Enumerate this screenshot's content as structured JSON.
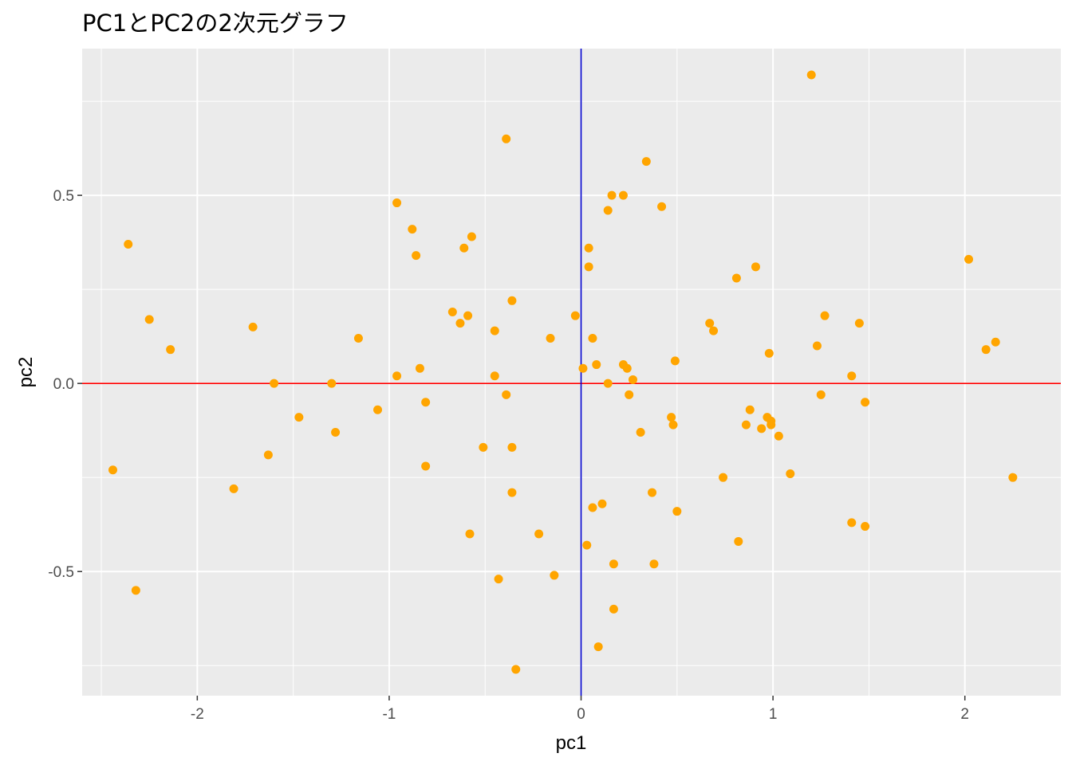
{
  "chart_data": {
    "type": "scatter",
    "title": "PC1とPC2の2次元グラフ",
    "xlabel": "pc1",
    "ylabel": "pc2",
    "xlim": [
      -2.6,
      2.5
    ],
    "ylim": [
      -0.83,
      0.89
    ],
    "x_ticks": [
      -2,
      -1,
      0,
      1,
      2
    ],
    "x_tick_labels": [
      "-2",
      "-1",
      "0",
      "1",
      "2"
    ],
    "y_ticks": [
      -0.5,
      0.0,
      0.5
    ],
    "y_tick_labels": [
      "-0.5",
      "0.0",
      "0.5"
    ],
    "x_minor_ticks": [
      -2.5,
      -1.5,
      -0.5,
      0.5,
      1.5
    ],
    "y_minor_ticks": [
      -0.75,
      -0.25,
      0.25,
      0.75
    ],
    "grid": true,
    "background_color": "#ebebeb",
    "grid_color": "#ffffff",
    "point_color": "#ffa500",
    "hline": {
      "y": 0,
      "color": "#ff0000"
    },
    "vline": {
      "x": 0,
      "color": "#0000cd"
    },
    "points": [
      [
        -2.44,
        -0.23
      ],
      [
        -2.36,
        0.37
      ],
      [
        -2.32,
        -0.55
      ],
      [
        -2.25,
        0.17
      ],
      [
        -2.14,
        0.09
      ],
      [
        -1.81,
        -0.28
      ],
      [
        -1.71,
        0.15
      ],
      [
        -1.63,
        -0.19
      ],
      [
        -1.6,
        0.0
      ],
      [
        -1.47,
        -0.09
      ],
      [
        -1.3,
        0.0
      ],
      [
        -1.28,
        -0.13
      ],
      [
        -1.16,
        0.12
      ],
      [
        -1.06,
        -0.07
      ],
      [
        -0.96,
        0.48
      ],
      [
        -0.96,
        0.02
      ],
      [
        -0.88,
        0.41
      ],
      [
        -0.86,
        0.34
      ],
      [
        -0.84,
        0.04
      ],
      [
        -0.81,
        -0.05
      ],
      [
        -0.81,
        -0.22
      ],
      [
        -0.67,
        0.19
      ],
      [
        -0.63,
        0.16
      ],
      [
        -0.61,
        0.36
      ],
      [
        -0.59,
        0.18
      ],
      [
        -0.58,
        -0.4
      ],
      [
        -0.57,
        0.39
      ],
      [
        -0.51,
        -0.17
      ],
      [
        -0.45,
        0.02
      ],
      [
        -0.45,
        0.14
      ],
      [
        -0.43,
        -0.52
      ],
      [
        -0.39,
        0.65
      ],
      [
        -0.39,
        -0.03
      ],
      [
        -0.36,
        0.22
      ],
      [
        -0.36,
        -0.17
      ],
      [
        -0.36,
        -0.29
      ],
      [
        -0.34,
        -0.76
      ],
      [
        -0.22,
        -0.4
      ],
      [
        -0.16,
        0.12
      ],
      [
        -0.14,
        -0.51
      ],
      [
        -0.03,
        0.18
      ],
      [
        0.01,
        0.04
      ],
      [
        0.03,
        -0.43
      ],
      [
        0.04,
        0.36
      ],
      [
        0.04,
        0.31
      ],
      [
        0.06,
        0.12
      ],
      [
        0.06,
        -0.33
      ],
      [
        0.08,
        0.05
      ],
      [
        0.09,
        -0.7
      ],
      [
        0.11,
        -0.32
      ],
      [
        0.14,
        0.46
      ],
      [
        0.14,
        0.0
      ],
      [
        0.16,
        0.5
      ],
      [
        0.17,
        -0.6
      ],
      [
        0.17,
        -0.48
      ],
      [
        0.22,
        0.5
      ],
      [
        0.22,
        0.05
      ],
      [
        0.24,
        0.04
      ],
      [
        0.25,
        -0.03
      ],
      [
        0.27,
        0.01
      ],
      [
        0.31,
        -0.13
      ],
      [
        0.34,
        0.59
      ],
      [
        0.37,
        -0.29
      ],
      [
        0.38,
        -0.48
      ],
      [
        0.42,
        0.47
      ],
      [
        0.47,
        -0.09
      ],
      [
        0.48,
        -0.11
      ],
      [
        0.49,
        0.06
      ],
      [
        0.5,
        -0.34
      ],
      [
        0.67,
        0.16
      ],
      [
        0.69,
        0.14
      ],
      [
        0.74,
        -0.25
      ],
      [
        0.81,
        0.28
      ],
      [
        0.82,
        -0.42
      ],
      [
        0.86,
        -0.11
      ],
      [
        0.88,
        -0.07
      ],
      [
        0.91,
        0.31
      ],
      [
        0.94,
        -0.12
      ],
      [
        0.97,
        -0.09
      ],
      [
        0.98,
        0.08
      ],
      [
        0.99,
        -0.11
      ],
      [
        0.99,
        -0.1
      ],
      [
        1.03,
        -0.14
      ],
      [
        1.09,
        -0.24
      ],
      [
        1.2,
        0.82
      ],
      [
        1.23,
        0.1
      ],
      [
        1.25,
        -0.03
      ],
      [
        1.27,
        0.18
      ],
      [
        1.41,
        -0.37
      ],
      [
        1.41,
        0.02
      ],
      [
        1.45,
        0.16
      ],
      [
        1.48,
        -0.38
      ],
      [
        1.48,
        -0.05
      ],
      [
        2.02,
        0.33
      ],
      [
        2.11,
        0.09
      ],
      [
        2.16,
        0.11
      ],
      [
        2.25,
        -0.25
      ]
    ]
  }
}
